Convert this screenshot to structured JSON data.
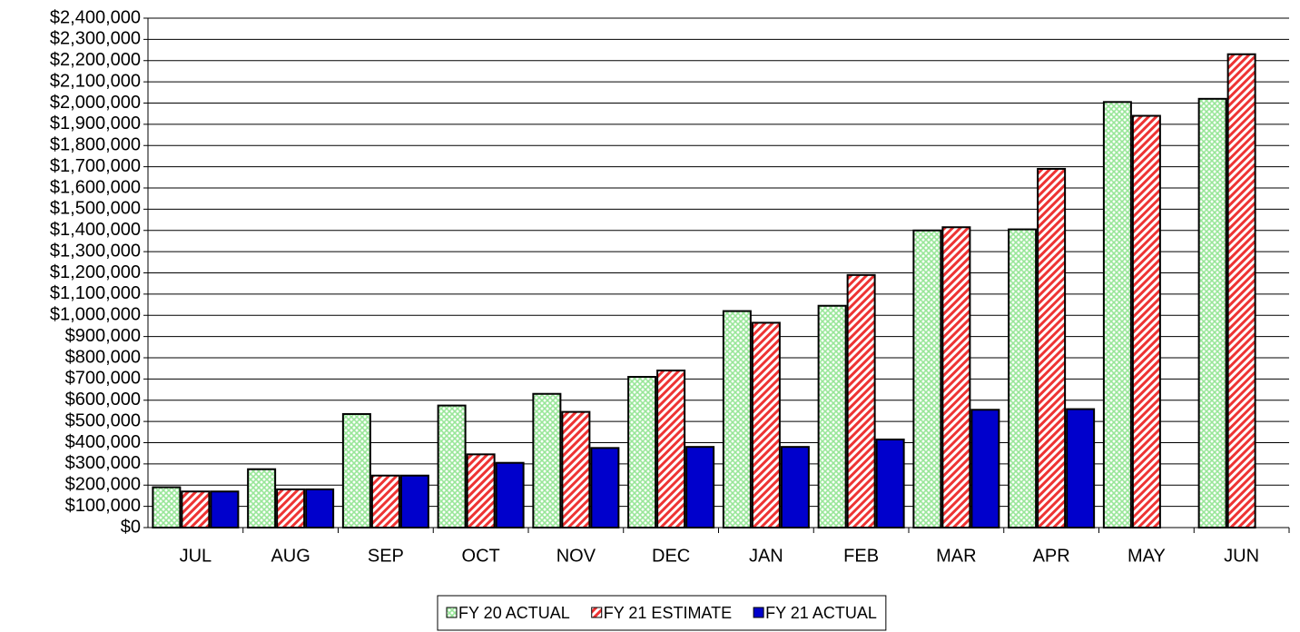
{
  "chart_data": {
    "type": "bar",
    "categories": [
      "JUL",
      "AUG",
      "SEP",
      "OCT",
      "NOV",
      "DEC",
      "JAN",
      "FEB",
      "MAR",
      "APR",
      "MAY",
      "JUN"
    ],
    "series": [
      {
        "name": "FY 20 ACTUAL",
        "color": "#99e699",
        "pattern": "crosshatch",
        "values": [
          190000,
          275000,
          535000,
          575000,
          630000,
          710000,
          1020000,
          1045000,
          1400000,
          1405000,
          2005000,
          2020000
        ]
      },
      {
        "name": "FY 21 ESTIMATE",
        "color": "#ee3333",
        "pattern": "diagonal",
        "values": [
          170000,
          180000,
          245000,
          345000,
          545000,
          740000,
          965000,
          1190000,
          1415000,
          1690000,
          1940000,
          2230000
        ]
      },
      {
        "name": "FY 21 ACTUAL",
        "color": "#0000cc",
        "pattern": "solid",
        "values": [
          170000,
          180000,
          245000,
          305000,
          375000,
          380000,
          380000,
          415000,
          555000,
          558000,
          null,
          null
        ]
      }
    ],
    "ylim": [
      0,
      2400000
    ],
    "yticks": [
      {
        "value": 0,
        "label": "$0"
      },
      {
        "value": 100000,
        "label": "$100,000"
      },
      {
        "value": 200000,
        "label": "$200,000"
      },
      {
        "value": 300000,
        "label": "$300,000"
      },
      {
        "value": 400000,
        "label": "$400,000"
      },
      {
        "value": 500000,
        "label": "$500,000"
      },
      {
        "value": 600000,
        "label": "$600,000"
      },
      {
        "value": 700000,
        "label": "$700,000"
      },
      {
        "value": 800000,
        "label": "$800,000"
      },
      {
        "value": 900000,
        "label": "$900,000"
      },
      {
        "value": 1000000,
        "label": "$1,000,000"
      },
      {
        "value": 1100000,
        "label": "$1,100,000"
      },
      {
        "value": 1200000,
        "label": "$1,200,000"
      },
      {
        "value": 1300000,
        "label": "$1,300,000"
      },
      {
        "value": 1400000,
        "label": "$1,400,000"
      },
      {
        "value": 1500000,
        "label": "$1,500,000"
      },
      {
        "value": 1600000,
        "label": "$1,600,000"
      },
      {
        "value": 1700000,
        "label": "$1,700,000"
      },
      {
        "value": 1800000,
        "label": "$1,800,000"
      },
      {
        "value": 1900000,
        "label": "$1,900,000"
      },
      {
        "value": 2000000,
        "label": "$2,000,000"
      },
      {
        "value": 2100000,
        "label": "$2,100,000"
      },
      {
        "value": 2200000,
        "label": "$2,200,000"
      },
      {
        "value": 2300000,
        "label": "$2,300,000"
      },
      {
        "value": 2400000,
        "label": "$2,400,000"
      }
    ],
    "grid": true,
    "legend": "bottom"
  }
}
